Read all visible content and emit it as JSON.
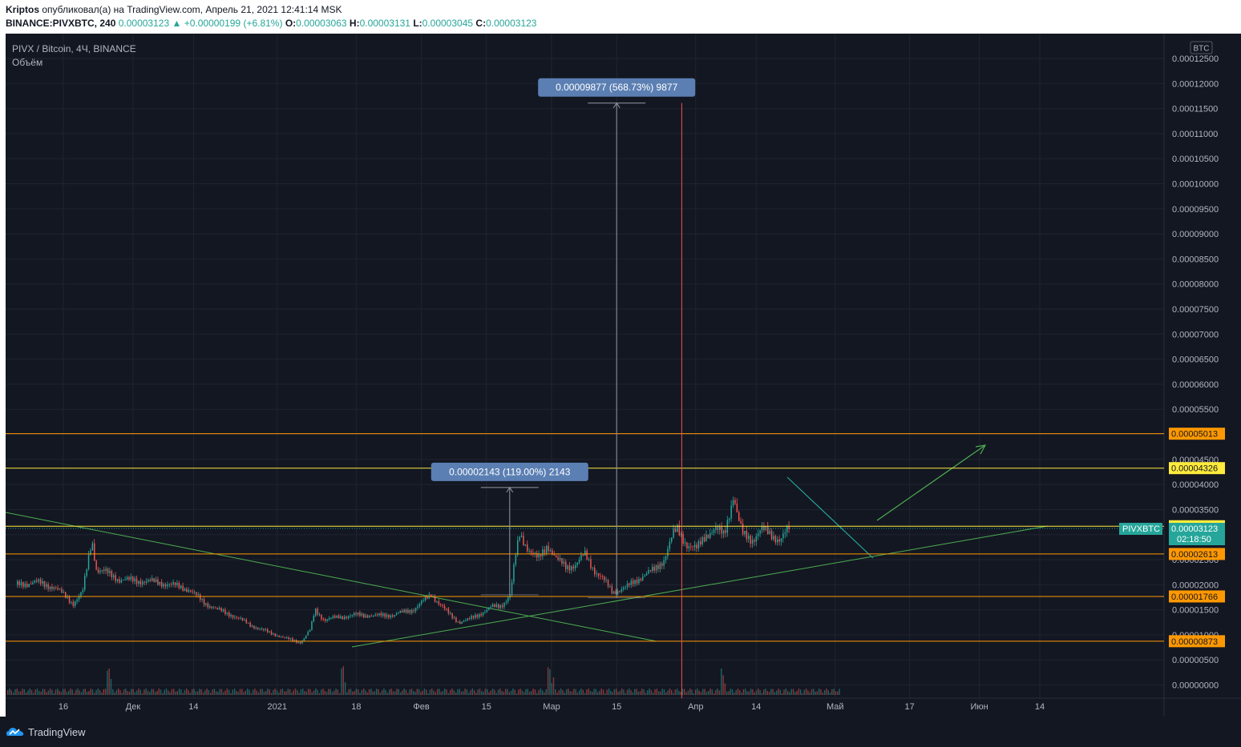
{
  "header": {
    "author": "Kriptos",
    "published_text": "опубликовал(а) на TradingView.com, Апрель 21, 2021 12:41:14 MSK",
    "symbol": "BINANCE:PIVXBTC, 240",
    "last": "0.00003123",
    "change": "+0.00000199 (+6.81%)",
    "o_label": "O:",
    "o": "0.00003063",
    "h_label": "H:",
    "h": "0.00003131",
    "l_label": "L:",
    "l": "0.00003045",
    "c_label": "C:",
    "c": "0.00003123"
  },
  "legend": {
    "title": "PIVX / Bitcoin, 4Ч, BINANCE",
    "volume": "Объём"
  },
  "footer": {
    "brand": "TradingView"
  },
  "colors": {
    "background": "#131722",
    "up": "#26a69a",
    "down": "#ef5350",
    "orange_line": "#ff9800",
    "yellow_line": "#ffeb3b",
    "trend_green": "#4caf50",
    "measure_box": "#5b7fb3"
  },
  "chart_data": {
    "type": "candlestick",
    "y_unit": "BTC",
    "ylim": [
      0.0,
      0.000125
    ],
    "y_ticks": [
      "0.00012500",
      "0.00012000",
      "0.00011500",
      "0.00011000",
      "0.00010500",
      "0.00010000",
      "0.00009500",
      "0.00009000",
      "0.00008500",
      "0.00008000",
      "0.00007500",
      "0.00007000",
      "0.00006500",
      "0.00006000",
      "0.00005500",
      "0.00005000",
      "0.00004500",
      "0.00004000",
      "0.00003500",
      "0.00003000",
      "0.00002500",
      "0.00002000",
      "0.00001500",
      "0.00001000",
      "0.00000500",
      "0.00000000"
    ],
    "x_ticks": [
      "16",
      "Дек",
      "14",
      "2021",
      "18",
      "Фев",
      "15",
      "Мар",
      "15",
      "Апр",
      "14",
      "Май",
      "17",
      "Июн",
      "14"
    ],
    "x_tick_dates": [
      "2020-11-16",
      "2020-12-01",
      "2020-12-14",
      "2021-01-01",
      "2021-01-18",
      "2021-02-01",
      "2021-02-15",
      "2021-03-01",
      "2021-03-15",
      "2021-04-01",
      "2021-04-14",
      "2021-05-01",
      "2021-05-17",
      "2021-06-01",
      "2021-06-14"
    ],
    "grid": true,
    "price_series": {
      "dates": [
        "2020-11-06",
        "2020-11-10",
        "2020-11-14",
        "2020-11-18",
        "2020-11-20",
        "2020-11-22",
        "2020-11-23",
        "2020-11-25",
        "2020-11-28",
        "2020-12-02",
        "2020-12-06",
        "2020-12-10",
        "2020-12-13",
        "2020-12-16",
        "2020-12-19",
        "2020-12-22",
        "2020-12-26",
        "2020-12-30",
        "2021-01-03",
        "2021-01-06",
        "2021-01-08",
        "2021-01-09",
        "2021-01-11",
        "2021-01-14",
        "2021-01-18",
        "2021-01-22",
        "2021-01-26",
        "2021-01-30",
        "2021-02-03",
        "2021-02-05",
        "2021-02-07",
        "2021-02-09",
        "2021-02-11",
        "2021-02-14",
        "2021-02-16",
        "2021-02-18",
        "2021-02-20",
        "2021-02-21",
        "2021-02-22",
        "2021-02-24",
        "2021-02-26",
        "2021-02-28",
        "2021-03-02",
        "2021-03-04",
        "2021-03-06",
        "2021-03-08",
        "2021-03-10",
        "2021-03-12",
        "2021-03-14",
        "2021-03-17",
        "2021-03-20",
        "2021-03-23",
        "2021-03-25",
        "2021-03-27",
        "2021-03-28",
        "2021-03-30",
        "2021-04-01",
        "2021-04-03",
        "2021-04-05",
        "2021-04-07",
        "2021-04-09",
        "2021-04-10",
        "2021-04-11",
        "2021-04-13",
        "2021-04-15",
        "2021-04-17",
        "2021-04-19",
        "2021-04-21"
      ],
      "close": [
        2e-05,
        2.05e-05,
        1.95e-05,
        1.63e-05,
        1.85e-05,
        2.9e-05,
        2.3e-05,
        2.25e-05,
        2.1e-05,
        2.08e-05,
        2.05e-05,
        1.98e-05,
        1.9e-05,
        1.65e-05,
        1.5e-05,
        1.4e-05,
        1.2e-05,
        1.05e-05,
        9.2e-06,
        8.5e-06,
        1.1e-05,
        1.5e-05,
        1.3e-05,
        1.35e-05,
        1.4e-05,
        1.38e-05,
        1.4e-05,
        1.5e-05,
        1.8e-05,
        1.6e-05,
        1.4e-05,
        1.25e-05,
        1.3e-05,
        1.45e-05,
        1.55e-05,
        1.58e-05,
        1.8e-05,
        2.5e-05,
        3e-05,
        2.7e-05,
        2.5e-05,
        2.8e-05,
        2.5e-05,
        2.35e-05,
        2.4e-05,
        2.6e-05,
        2.3e-05,
        2.1e-05,
        1.85e-05,
        1.95e-05,
        2.15e-05,
        2.3e-05,
        2.5e-05,
        3e-05,
        3.1e-05,
        2.8e-05,
        2.7e-05,
        3e-05,
        3.1e-05,
        3e-05,
        3.8e-05,
        3.3e-05,
        3e-05,
        2.9e-05,
        3.1e-05,
        3e-05,
        2.9e-05,
        3.12e-05
      ]
    },
    "horizontal_levels": [
      {
        "value": 5.013e-05,
        "label": "0.00005013",
        "color": "#ff9800"
      },
      {
        "value": 4.326e-05,
        "label": "0.00004326",
        "color": "#ffeb3b"
      },
      {
        "value": 3.167e-05,
        "label": "0.00003167",
        "color": "#ffeb3b"
      },
      {
        "value": 2.613e-05,
        "label": "0.00002613",
        "color": "#ff9800"
      },
      {
        "value": 1.766e-05,
        "label": "0.00001766",
        "color": "#ff9800"
      },
      {
        "value": 8.73e-06,
        "label": "0.00000873",
        "color": "#ff9800"
      }
    ],
    "current_price": {
      "symbol": "PIVXBTC",
      "value": 3.123e-05,
      "label": "0.00003123",
      "countdown": "02:18:50"
    },
    "measurements": [
      {
        "label": "0.00009877 (568.73%) 9877",
        "from_date": "2021-03-15",
        "from_value": 1.74e-05,
        "to_value": 0.0001161
      },
      {
        "label": "0.00002143 (119.00%) 2143",
        "from_date": "2021-02-20",
        "from_value": 1.8e-05,
        "to_value": 3.94e-05
      }
    ],
    "vertical_marker": {
      "date": "2021-03-29",
      "color": "#ef5350"
    }
  }
}
